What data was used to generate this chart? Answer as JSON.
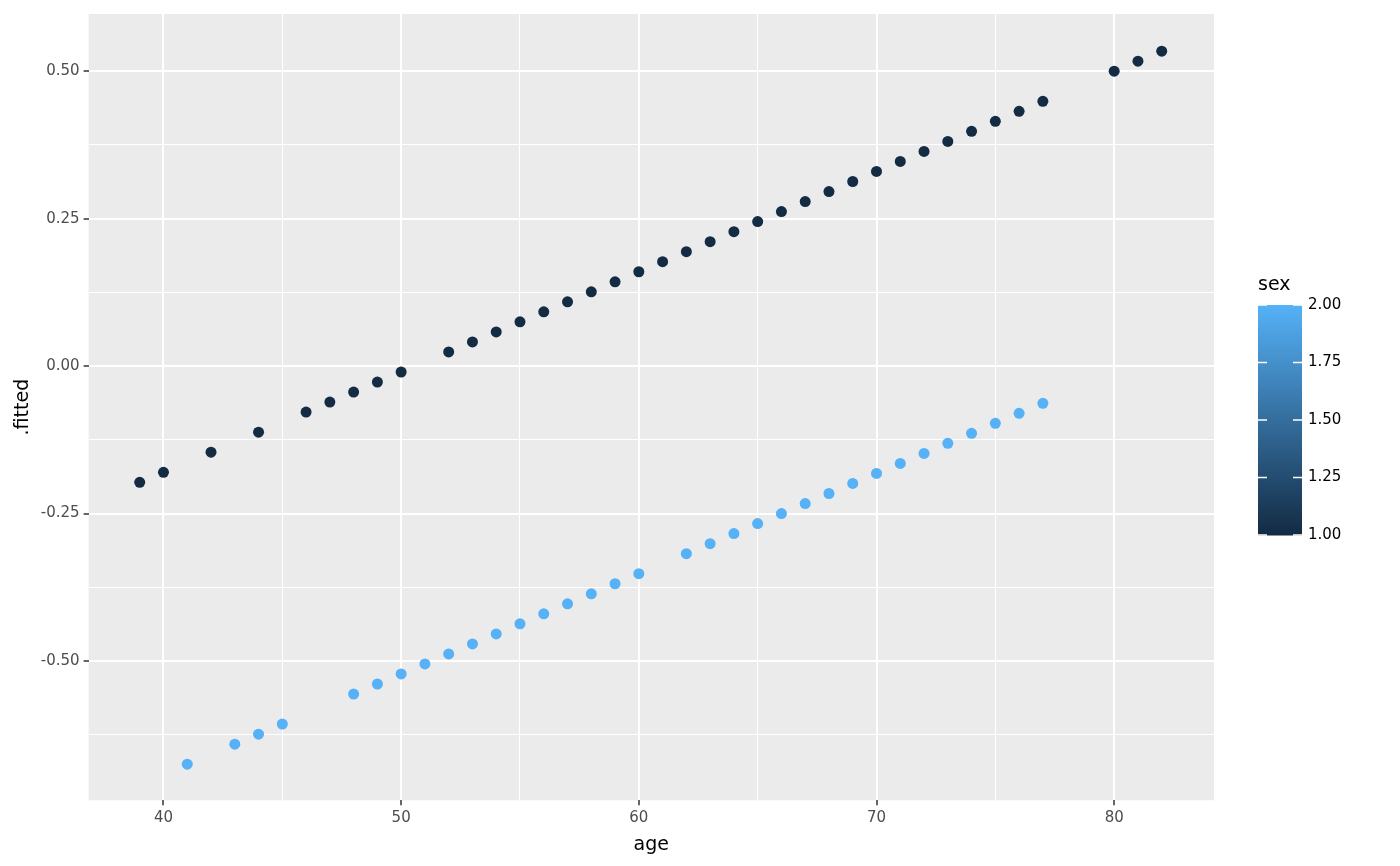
{
  "chart_data": {
    "type": "scatter",
    "xlabel": "age",
    "ylabel": ".fitted",
    "clabel": "sex",
    "grid": true,
    "legend": false,
    "marker": "circle",
    "xlim": [
      36.85,
      84.2
    ],
    "ylim": [
      -0.736,
      0.597
    ],
    "xticks": [
      40,
      {
        "value": 45,
        "label": null
      },
      50,
      {
        "value": 55,
        "label": null
      },
      60,
      {
        "value": 65,
        "label": null
      },
      70,
      {
        "value": 75,
        "label": null
      },
      80
    ],
    "yticks": [
      {
        "value": -0.625,
        "label": null
      },
      {
        "value": -0.5,
        "label": "-0.50"
      },
      {
        "value": -0.375,
        "label": null
      },
      {
        "value": -0.25,
        "label": "-0.25"
      },
      {
        "value": -0.125,
        "label": null
      },
      {
        "value": 0,
        "label": "0.00"
      },
      {
        "value": 0.125,
        "label": null
      },
      {
        "value": 0.25,
        "label": "0.25"
      },
      {
        "value": 0.375,
        "label": null
      },
      {
        "value": 0.5,
        "label": "0.50"
      }
    ],
    "clim": [
      1,
      2
    ],
    "cticks": [
      {
        "value": 1,
        "label": "1.00"
      },
      {
        "value": 1.25,
        "label": "1.25"
      },
      {
        "value": 1.5,
        "label": "1.50"
      },
      {
        "value": 1.75,
        "label": "1.75"
      },
      {
        "value": 2,
        "label": "2.00"
      }
    ],
    "series": [
      {
        "color": "#132b43",
        "x": [
          39,
          40,
          42,
          44,
          46,
          47,
          48,
          49,
          50,
          52,
          53,
          54,
          55,
          56,
          57,
          58,
          59,
          60,
          61,
          62,
          63,
          64,
          65,
          66,
          67,
          68,
          69,
          70,
          71,
          72,
          73,
          74,
          75,
          76,
          77,
          80,
          81,
          82
        ],
        "values": [
          -0.197,
          -0.18,
          -0.146,
          -0.112,
          -0.078,
          -0.061,
          -0.044,
          -0.027,
          -0.01,
          0.024,
          0.041,
          0.058,
          0.075,
          0.092,
          0.109,
          0.126,
          0.143,
          0.16,
          0.177,
          0.194,
          0.211,
          0.228,
          0.245,
          0.262,
          0.279,
          0.296,
          0.313,
          0.33,
          0.347,
          0.364,
          0.381,
          0.398,
          0.415,
          0.432,
          0.449,
          0.5,
          0.517,
          0.534
        ],
        "cvalues": [
          1,
          1,
          1,
          1,
          1,
          1,
          1,
          1,
          1,
          1,
          1,
          1,
          1,
          1,
          1,
          1,
          1,
          1,
          1,
          1,
          1,
          1,
          1,
          1,
          1,
          1,
          1,
          1,
          1,
          1,
          1,
          1,
          1,
          1,
          1,
          1,
          1,
          1
        ]
      },
      {
        "color": "#56b1f7",
        "x": [
          41,
          43,
          44,
          45,
          48,
          49,
          50,
          51,
          52,
          53,
          54,
          55,
          56,
          57,
          58,
          59,
          60,
          62,
          63,
          64,
          65,
          66,
          67,
          68,
          69,
          70,
          71,
          72,
          73,
          74,
          75,
          76,
          77
        ],
        "values": [
          -0.675,
          -0.641,
          -0.624,
          -0.607,
          -0.556,
          -0.539,
          -0.522,
          -0.505,
          -0.488,
          -0.471,
          -0.454,
          -0.437,
          -0.42,
          -0.403,
          -0.386,
          -0.369,
          -0.352,
          -0.318,
          -0.301,
          -0.284,
          -0.267,
          -0.25,
          -0.233,
          -0.216,
          -0.199,
          -0.182,
          -0.165,
          -0.148,
          -0.131,
          -0.114,
          -0.097,
          -0.08,
          -0.063
        ],
        "cvalues": [
          2,
          2,
          2,
          2,
          2,
          2,
          2,
          2,
          2,
          2,
          2,
          2,
          2,
          2,
          2,
          2,
          2,
          2,
          2,
          2,
          2,
          2,
          2,
          2,
          2,
          2,
          2,
          2,
          2,
          2,
          2,
          2,
          2
        ]
      }
    ]
  }
}
